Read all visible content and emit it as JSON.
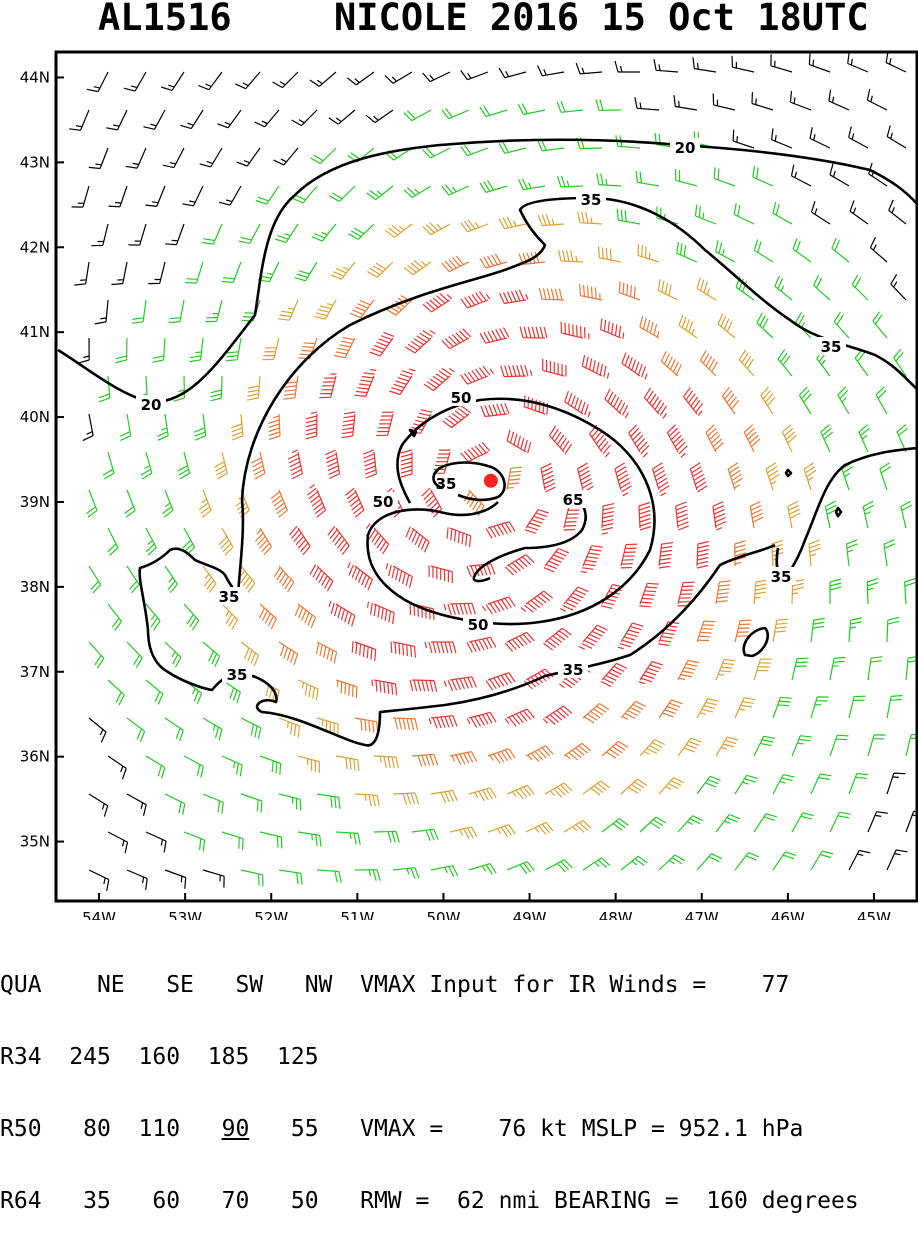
{
  "title": {
    "storm_id": "AL1516",
    "storm_info": "NICOLE 2016 15 Oct 18UTC"
  },
  "map": {
    "lon_labels": [
      "54W",
      "53W",
      "52W",
      "51W",
      "50W",
      "49W",
      "48W",
      "47W",
      "46W",
      "45W"
    ],
    "lat_labels": [
      "44N",
      "43N",
      "42N",
      "41N",
      "40N",
      "39N",
      "38N",
      "37N",
      "36N",
      "35N"
    ],
    "lon_range": [
      -54.5,
      -44.5
    ],
    "lat_range": [
      34.3,
      44.3
    ],
    "storm_center": {
      "lon": -49.45,
      "lat": 39.25
    },
    "contour_labels": [
      "20",
      "20",
      "35",
      "35",
      "35",
      "35",
      "35",
      "35",
      "50",
      "50",
      "50",
      "65"
    ],
    "barb_colors": {
      "lt20": "#000000",
      "20to35": "#22cc22",
      "35to50": "#e0a030",
      "50to65": "#ee7733",
      "gt65": "#ee3333"
    },
    "center_color": "#ff2222"
  },
  "stats": {
    "row1": {
      "label": "QUA",
      "ne": "NE",
      "se": "SE",
      "sw": "SW",
      "nw": "NW",
      "text": "VMAX Input for IR Winds =",
      "value": "77"
    },
    "row2": {
      "label": "R34",
      "ne": "245",
      "se": "160",
      "sw": "185",
      "nw": "125"
    },
    "row3": {
      "label": "R50",
      "ne": "80",
      "se": "110",
      "sw": "90",
      "nw": "55",
      "vmax_label": "VMAX =",
      "vmax": "76",
      "vmax_unit": "kt",
      "mslp_label": "MSLP =",
      "mslp": "952.1",
      "mslp_unit": "hPa"
    },
    "row4": {
      "label": "R64",
      "ne": "35",
      "se": "60",
      "sw": "70",
      "nw": "50",
      "rmw_label": "RMW =",
      "rmw": "62",
      "rmw_unit": "nmi",
      "bearing_label": "BEARING =",
      "bearing": "160",
      "bearing_unit": "degrees"
    }
  }
}
